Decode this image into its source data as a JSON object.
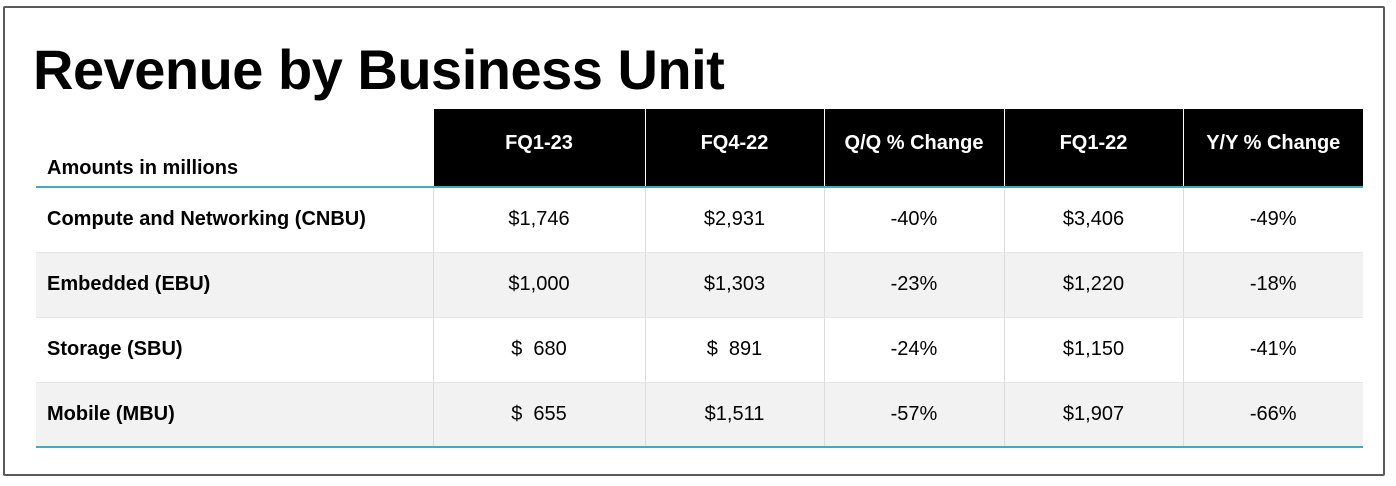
{
  "title": "Revenue by Business Unit",
  "table": {
    "units_label": "Amounts in millions",
    "columns": [
      "FQ1-23",
      "FQ4-22",
      "Q/Q % Change",
      "FQ1-22",
      "Y/Y % Change"
    ],
    "rows": [
      {
        "label": "Compute and Networking (CNBU)",
        "cells": [
          "$1,746",
          "$2,931",
          "-40%",
          "$3,406",
          "-49%"
        ]
      },
      {
        "label": "Embedded (EBU)",
        "cells": [
          "$1,000",
          "$1,303",
          "-23%",
          "$1,220",
          "-18%"
        ]
      },
      {
        "label": "Storage (SBU)",
        "cells": [
          "$  680",
          "$  891",
          "-24%",
          "$1,150",
          "-41%"
        ]
      },
      {
        "label": "Mobile (MBU)",
        "cells": [
          "$  655",
          "$1,511",
          "-57%",
          "$1,907",
          "-66%"
        ]
      }
    ]
  },
  "colors": {
    "header_bg": "#000000",
    "header_text": "#ffffff",
    "accent_rule": "#4aa8bd",
    "alt_row_bg": "#f2f2f2"
  }
}
